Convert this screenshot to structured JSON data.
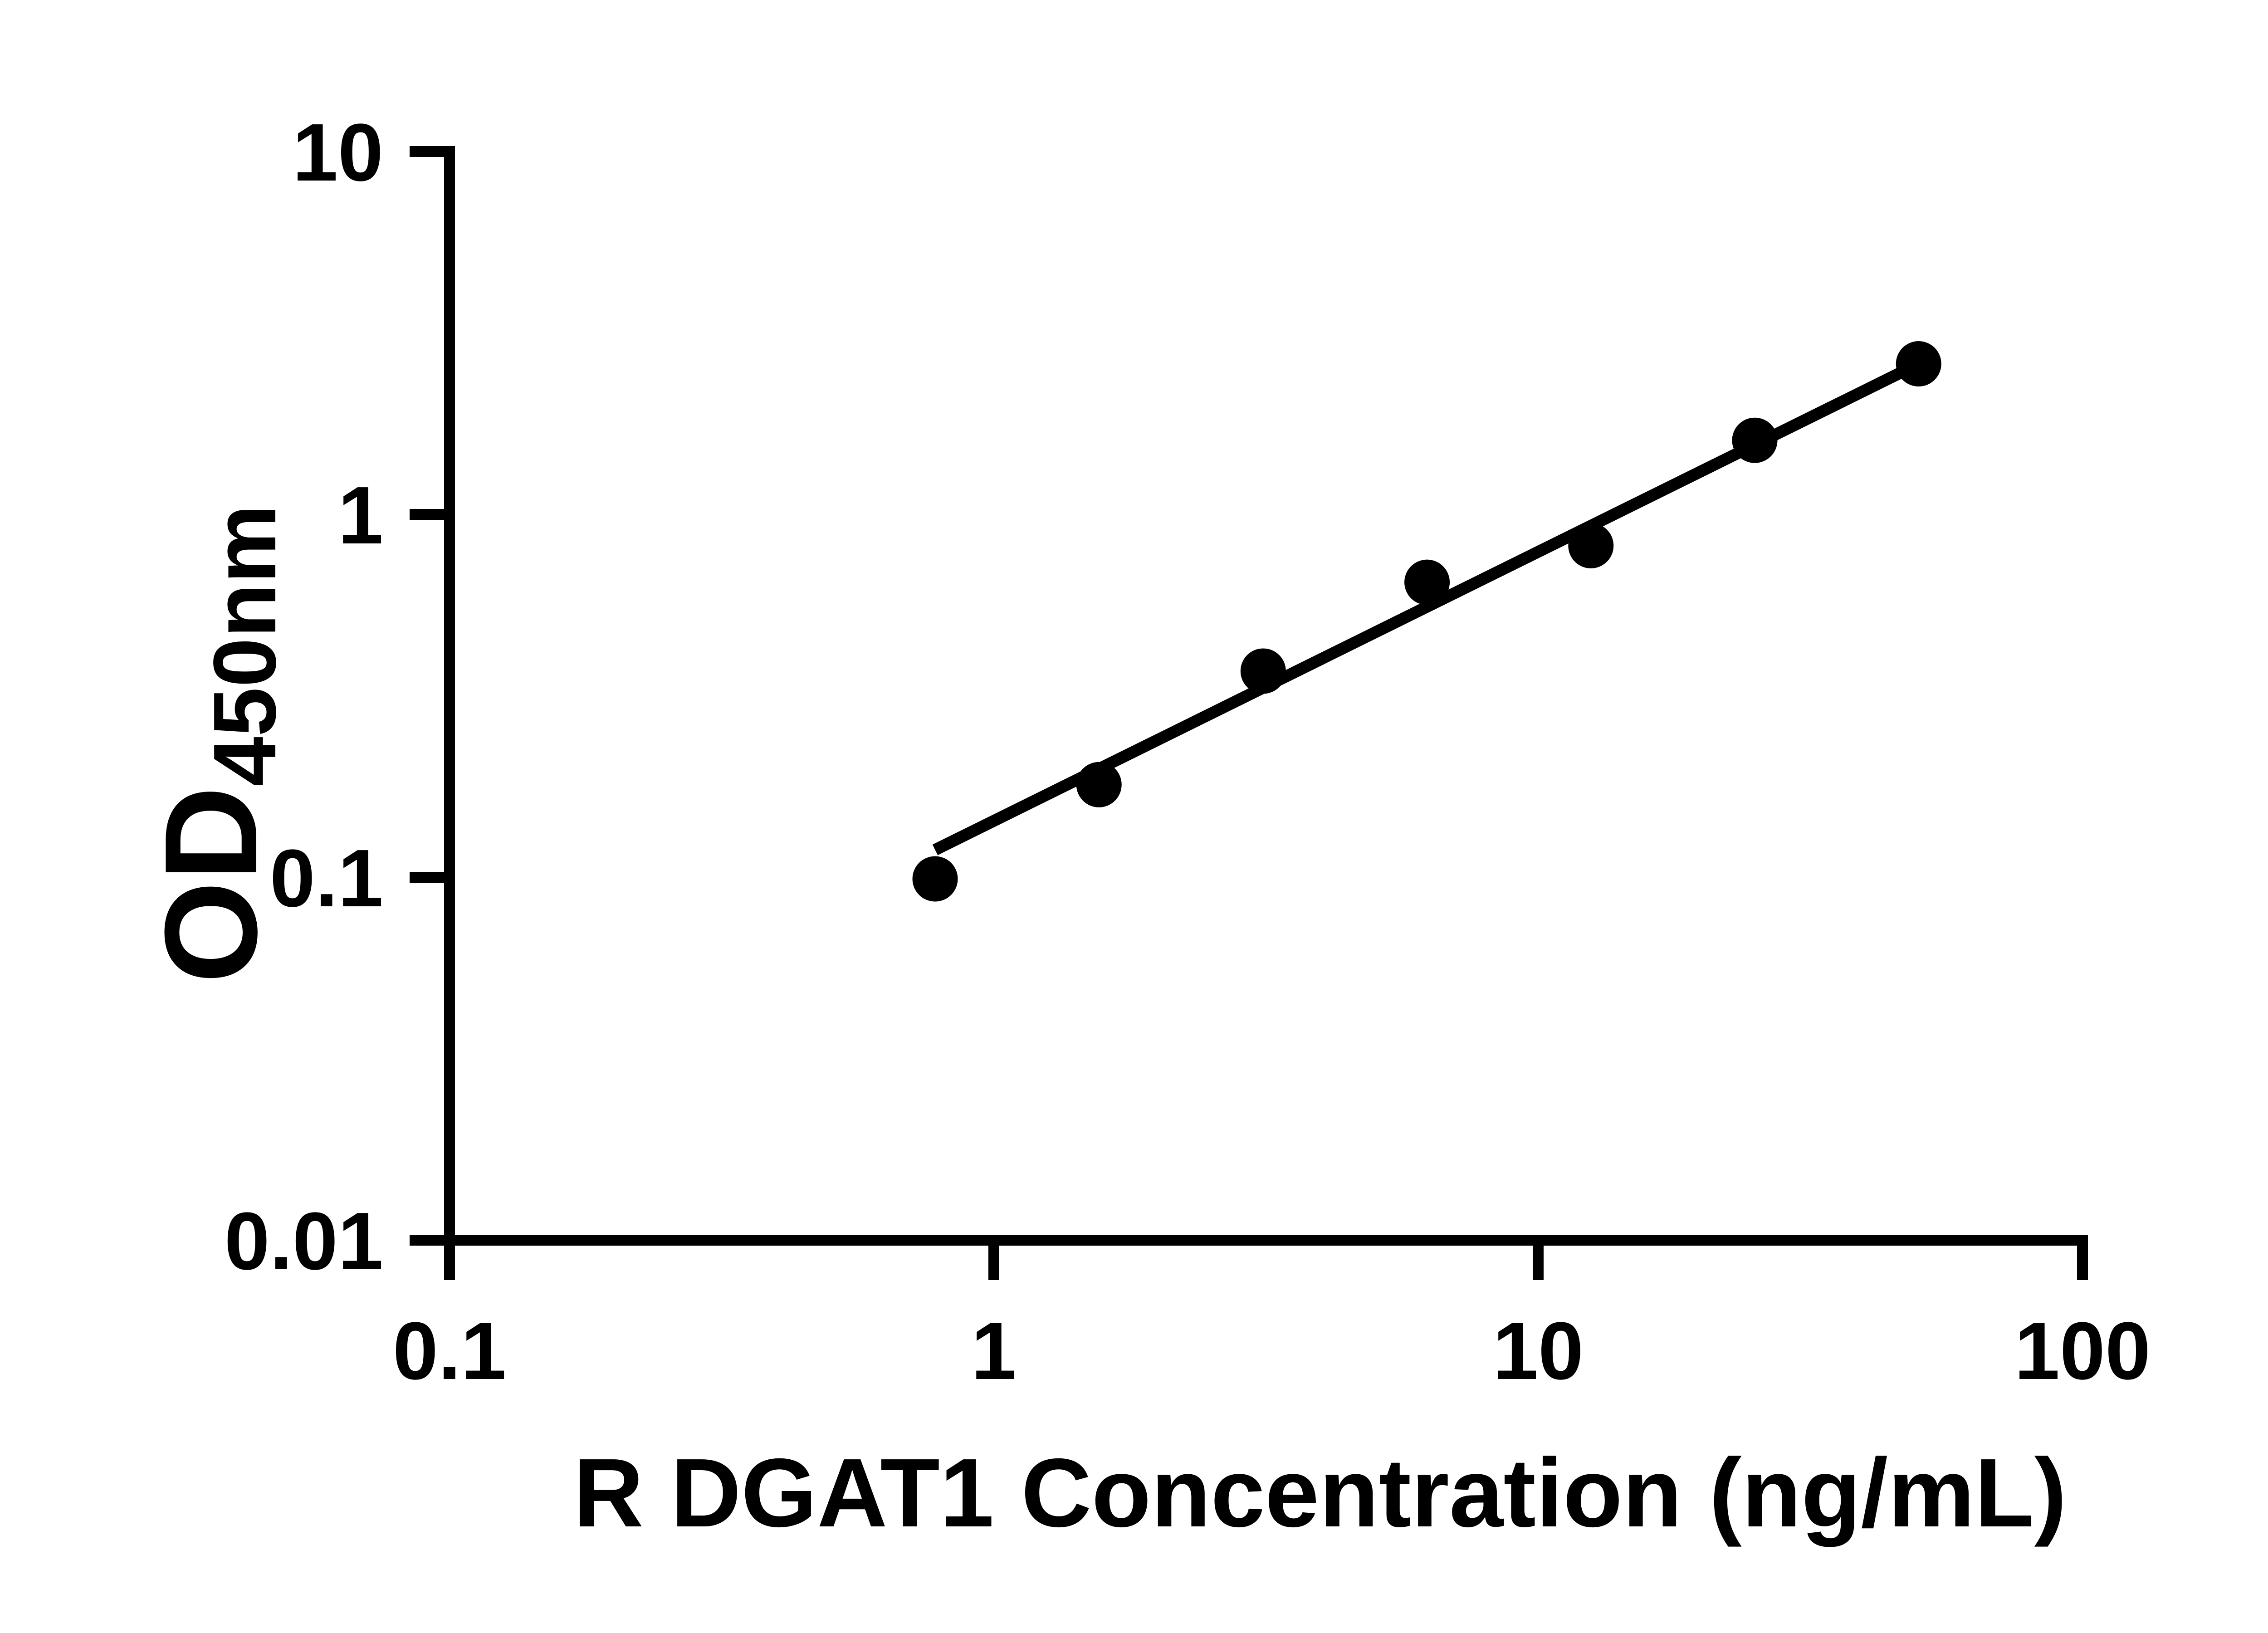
{
  "colors": {
    "ink": "#000000",
    "background": "#ffffff"
  },
  "chart_data": {
    "type": "scatter",
    "title": "",
    "xlabel": "R DGAT1 Concentration (ng/mL)",
    "ylabel": "OD450nm",
    "ylabel_main": "OD",
    "ylabel_sub": "450nm",
    "x_scale": "log10",
    "y_scale": "log10",
    "xlim": [
      0.1,
      100
    ],
    "ylim": [
      0.01,
      10
    ],
    "grid": false,
    "legend": false,
    "x_ticks": [
      {
        "v": 0.1,
        "label": "0.1"
      },
      {
        "v": 1,
        "label": "1"
      },
      {
        "v": 10,
        "label": "10"
      },
      {
        "v": 100,
        "label": "100"
      }
    ],
    "y_ticks": [
      {
        "v": 10,
        "label": "10"
      },
      {
        "v": 1,
        "label": "1"
      },
      {
        "v": 0.1,
        "label": "0.1"
      },
      {
        "v": 0.01,
        "label": "0.01"
      }
    ],
    "series": [
      {
        "name": "standard-points",
        "type": "scatter",
        "marker": "filled-circle",
        "color": "#000000",
        "points": [
          {
            "x": 0.78,
            "y": 0.099
          },
          {
            "x": 1.56,
            "y": 0.18
          },
          {
            "x": 3.125,
            "y": 0.37
          },
          {
            "x": 6.25,
            "y": 0.65
          },
          {
            "x": 12.5,
            "y": 0.82
          },
          {
            "x": 25,
            "y": 1.6
          },
          {
            "x": 50,
            "y": 2.6
          }
        ]
      },
      {
        "name": "fit-line",
        "type": "line",
        "color": "#000000",
        "points": [
          {
            "x": 0.78,
            "y": 0.119
          },
          {
            "x": 50,
            "y": 2.6
          }
        ]
      }
    ]
  }
}
